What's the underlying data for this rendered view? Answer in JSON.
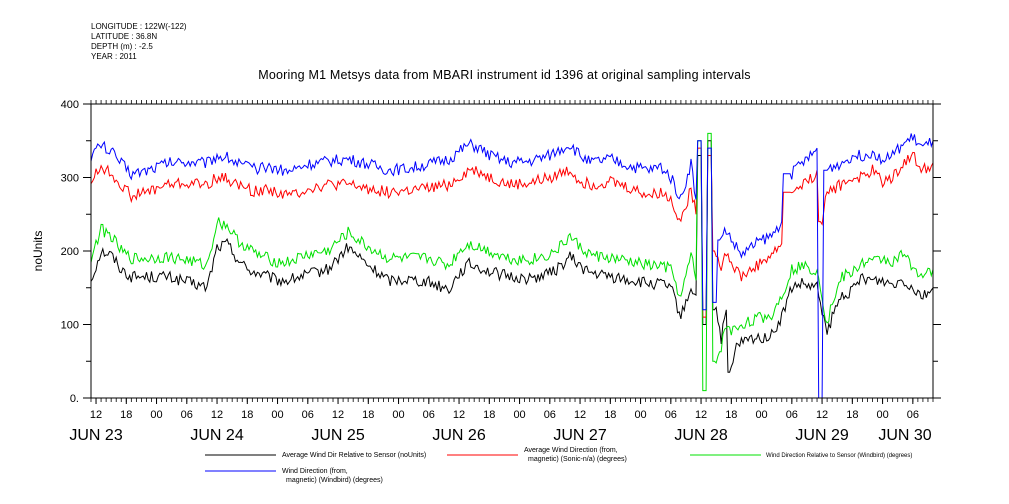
{
  "meta": {
    "longitude": "LONGITUDE : 122W(-122)",
    "latitude": "LATITUDE : 36.8N",
    "depth": "DEPTH (m) : -2.5",
    "year": "YEAR : 2011"
  },
  "chart_data": {
    "type": "line",
    "title": "Mooring M1 Metsys data from MBARI instrument id 1396 at original sampling intervals",
    "ylabel": "noUnits",
    "xlabel": "",
    "ylim": [
      0,
      400
    ],
    "yticks": [
      "0.",
      "100",
      "200",
      "300",
      "400"
    ],
    "xlim": [
      11,
      178
    ],
    "hour_ticks": [
      {
        "x": 12,
        "label": "12"
      },
      {
        "x": 18,
        "label": "18"
      },
      {
        "x": 24,
        "label": "00"
      },
      {
        "x": 30,
        "label": "06"
      },
      {
        "x": 36,
        "label": "12"
      },
      {
        "x": 42,
        "label": "18"
      },
      {
        "x": 48,
        "label": "00"
      },
      {
        "x": 54,
        "label": "06"
      },
      {
        "x": 60,
        "label": "12"
      },
      {
        "x": 66,
        "label": "18"
      },
      {
        "x": 72,
        "label": "00"
      },
      {
        "x": 78,
        "label": "06"
      },
      {
        "x": 84,
        "label": "12"
      },
      {
        "x": 90,
        "label": "18"
      },
      {
        "x": 96,
        "label": "00"
      },
      {
        "x": 102,
        "label": "06"
      },
      {
        "x": 108,
        "label": "12"
      },
      {
        "x": 114,
        "label": "18"
      },
      {
        "x": 120,
        "label": "00"
      },
      {
        "x": 126,
        "label": "06"
      },
      {
        "x": 132,
        "label": "12"
      },
      {
        "x": 138,
        "label": "18"
      },
      {
        "x": 144,
        "label": "00"
      },
      {
        "x": 150,
        "label": "06"
      },
      {
        "x": 156,
        "label": "12"
      },
      {
        "x": 162,
        "label": "18"
      },
      {
        "x": 168,
        "label": "00"
      },
      {
        "x": 174,
        "label": "06"
      }
    ],
    "day_ticks": [
      {
        "x": 12,
        "label": "JUN 23"
      },
      {
        "x": 36,
        "label": "JUN 24"
      },
      {
        "x": 60,
        "label": "JUN 25"
      },
      {
        "x": 84,
        "label": "JUN 26"
      },
      {
        "x": 108,
        "label": "JUN 27"
      },
      {
        "x": 132,
        "label": "JUN 28"
      },
      {
        "x": 156,
        "label": "JUN 29"
      },
      {
        "x": 178,
        "label": "JUN 30"
      }
    ],
    "series": [
      {
        "name": "Average Wind Dir Relative to Sensor (noUnits)",
        "color": "#000000",
        "x": [
          11,
          13,
          15,
          17,
          19,
          22,
          26,
          30,
          34,
          36,
          38,
          40,
          42,
          44,
          46,
          48,
          50,
          54,
          58,
          62,
          66,
          70,
          74,
          78,
          82,
          84,
          86,
          88,
          90,
          94,
          98,
          102,
          104,
          106,
          108,
          110,
          114,
          118,
          122,
          124,
          126,
          128,
          130,
          131,
          132,
          133,
          134,
          135,
          136,
          137,
          138,
          139,
          140,
          142,
          144,
          146,
          148,
          150,
          152,
          154,
          155,
          156,
          157,
          158,
          160,
          162,
          164,
          166,
          168,
          170,
          172,
          174,
          176,
          178
        ],
        "values": [
          160,
          200,
          195,
          175,
          165,
          165,
          165,
          158,
          150,
          205,
          210,
          190,
          175,
          170,
          165,
          160,
          160,
          168,
          175,
          205,
          180,
          160,
          162,
          158,
          148,
          170,
          182,
          178,
          172,
          165,
          162,
          170,
          178,
          192,
          180,
          170,
          165,
          160,
          155,
          155,
          150,
          110,
          150,
          140,
          330,
          100,
          350,
          120,
          80,
          120,
          35,
          70,
          75,
          80,
          82,
          85,
          110,
          150,
          155,
          150,
          150,
          120,
          85,
          110,
          140,
          145,
          165,
          160,
          160,
          155,
          162,
          150,
          140,
          150
        ]
      },
      {
        "name": "Average Wind Direction (from, magnetic) (Sonic-n/a) (degrees)",
        "color": "#ff0000",
        "x": [
          11,
          13,
          15,
          17,
          19,
          22,
          26,
          30,
          34,
          36,
          38,
          40,
          42,
          44,
          46,
          48,
          50,
          54,
          58,
          62,
          66,
          70,
          74,
          78,
          82,
          84,
          86,
          88,
          90,
          94,
          98,
          102,
          104,
          106,
          108,
          110,
          114,
          118,
          122,
          124,
          126,
          128,
          130,
          131,
          132,
          133,
          134,
          135,
          136,
          137,
          138,
          139,
          140,
          142,
          144,
          146,
          148,
          150,
          152,
          154,
          155,
          156,
          157,
          158,
          160,
          162,
          164,
          166,
          168,
          170,
          172,
          174,
          176,
          178
        ],
        "values": [
          295,
          315,
          305,
          290,
          275,
          280,
          290,
          292,
          290,
          300,
          298,
          290,
          285,
          280,
          285,
          280,
          275,
          285,
          290,
          290,
          285,
          280,
          282,
          285,
          290,
          300,
          310,
          308,
          300,
          290,
          292,
          300,
          305,
          310,
          295,
          290,
          295,
          285,
          275,
          280,
          270,
          240,
          285,
          250,
          340,
          110,
          330,
          200,
          180,
          200,
          185,
          175,
          165,
          175,
          185,
          195,
          210,
          280,
          290,
          300,
          310,
          240,
          280,
          285,
          290,
          300,
          300,
          310,
          295,
          300,
          320,
          330,
          310,
          320
        ]
      },
      {
        "name": "Wind Direction Relative to Sensor (Windbird) (degrees)",
        "color": "#00e000",
        "x": [
          11,
          13,
          15,
          17,
          19,
          22,
          26,
          30,
          34,
          36,
          38,
          40,
          42,
          44,
          46,
          48,
          50,
          54,
          58,
          62,
          66,
          70,
          74,
          78,
          82,
          84,
          86,
          88,
          90,
          94,
          98,
          102,
          104,
          106,
          108,
          110,
          114,
          118,
          122,
          124,
          126,
          128,
          130,
          131,
          132,
          133,
          134,
          135,
          136,
          137,
          138,
          139,
          140,
          142,
          144,
          146,
          148,
          150,
          152,
          154,
          155,
          156,
          157,
          158,
          160,
          162,
          164,
          166,
          168,
          170,
          172,
          174,
          176,
          178
        ],
        "values": [
          190,
          230,
          220,
          200,
          190,
          190,
          192,
          188,
          180,
          240,
          235,
          215,
          205,
          195,
          190,
          185,
          185,
          195,
          200,
          225,
          205,
          190,
          190,
          190,
          180,
          200,
          210,
          205,
          200,
          190,
          188,
          195,
          205,
          220,
          205,
          195,
          190,
          185,
          180,
          180,
          175,
          135,
          195,
          160,
          350,
          10,
          360,
          50,
          70,
          100,
          90,
          95,
          100,
          105,
          110,
          112,
          140,
          175,
          180,
          175,
          175,
          140,
          100,
          130,
          165,
          170,
          185,
          185,
          190,
          185,
          195,
          180,
          165,
          175
        ]
      },
      {
        "name": "Wind Direction (from, magnetic) (Windbird) (degrees)",
        "color": "#0000ff",
        "x": [
          11,
          13,
          15,
          17,
          19,
          22,
          26,
          30,
          34,
          36,
          38,
          40,
          42,
          44,
          46,
          48,
          50,
          54,
          58,
          62,
          66,
          70,
          74,
          78,
          82,
          84,
          86,
          88,
          90,
          94,
          98,
          102,
          104,
          106,
          108,
          110,
          114,
          118,
          122,
          124,
          126,
          128,
          130,
          131,
          132,
          133,
          134,
          135,
          136,
          137,
          138,
          139,
          140,
          142,
          144,
          146,
          148,
          150,
          152,
          154,
          155,
          156,
          157,
          158,
          160,
          162,
          164,
          166,
          168,
          170,
          172,
          174,
          176,
          178
        ],
        "values": [
          330,
          345,
          335,
          320,
          305,
          310,
          320,
          322,
          320,
          330,
          328,
          320,
          315,
          310,
          315,
          312,
          308,
          318,
          322,
          325,
          318,
          310,
          312,
          318,
          325,
          335,
          345,
          340,
          330,
          320,
          322,
          330,
          338,
          345,
          330,
          320,
          325,
          315,
          310,
          315,
          300,
          270,
          320,
          270,
          350,
          120,
          340,
          130,
          215,
          230,
          215,
          205,
          195,
          205,
          215,
          220,
          240,
          305,
          320,
          330,
          340,
          0,
          310,
          315,
          320,
          330,
          330,
          335,
          325,
          330,
          345,
          355,
          340,
          350
        ]
      }
    ]
  },
  "legend": {
    "item1": "Average Wind Dir Relative to Sensor (noUnits)",
    "item2_line1": "Average Wind Direction (from,",
    "item2_line2": "magnetic) (Sonic-n/a) (degrees)",
    "item3": "Wind Direction Relative to Sensor (Windbird) (degrees)",
    "item4_line1": "Wind Direction (from,",
    "item4_line2": "magnetic) (Windbird) (degrees)"
  }
}
